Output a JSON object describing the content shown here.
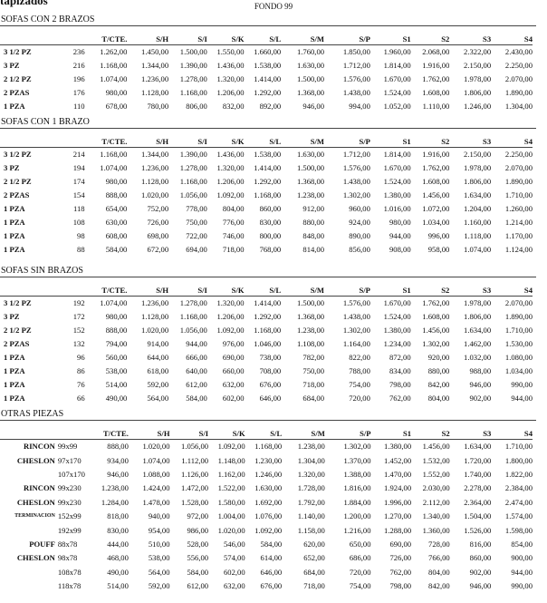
{
  "header": {
    "brand": "tapizados",
    "title": "FONDO 99"
  },
  "sections": [
    {
      "title": "SOFAS CON 2 BRAZOS",
      "columns": [
        "T/CTE.",
        "S/H",
        "S/I",
        "S/K",
        "S/L",
        "S/M",
        "S/P",
        "S1",
        "S2",
        "S3",
        "S4"
      ],
      "rows": [
        {
          "label": "3 1/2 PZ",
          "size": "236",
          "values": [
            "1.262,00",
            "1.450,00",
            "1.500,00",
            "1.550,00",
            "1.660,00",
            "1.760,00",
            "1.850,00",
            "1.960,00",
            "2.068,00",
            "2.322,00",
            "2.430,00"
          ]
        },
        {
          "label": "3 PZ",
          "size": "216",
          "values": [
            "1.168,00",
            "1.344,00",
            "1.390,00",
            "1.436,00",
            "1.538,00",
            "1.630,00",
            "1.712,00",
            "1.814,00",
            "1.916,00",
            "2.150,00",
            "2.250,00"
          ]
        },
        {
          "label": "2 1/2 PZ",
          "size": "196",
          "values": [
            "1.074,00",
            "1.236,00",
            "1.278,00",
            "1.320,00",
            "1.414,00",
            "1.500,00",
            "1.576,00",
            "1.670,00",
            "1.762,00",
            "1.978,00",
            "2.070,00"
          ]
        },
        {
          "label": "2 PZAS",
          "size": "176",
          "values": [
            "980,00",
            "1.128,00",
            "1.168,00",
            "1.206,00",
            "1.292,00",
            "1.368,00",
            "1.438,00",
            "1.524,00",
            "1.608,00",
            "1.806,00",
            "1.890,00"
          ]
        },
        {
          "label": "1 PZA",
          "size": "110",
          "values": [
            "678,00",
            "780,00",
            "806,00",
            "832,00",
            "892,00",
            "946,00",
            "994,00",
            "1.052,00",
            "1.110,00",
            "1.246,00",
            "1.304,00"
          ]
        }
      ]
    },
    {
      "title": "SOFAS CON 1 BRAZO",
      "columns": [
        "T/CTE.",
        "S/H",
        "S/I",
        "S/K",
        "S/L",
        "S/M",
        "S/P",
        "S1",
        "S2",
        "S3",
        "S4"
      ],
      "rows": [
        {
          "label": "3 1/2 PZ",
          "size": "214",
          "values": [
            "1.168,00",
            "1.344,00",
            "1.390,00",
            "1.436,00",
            "1.538,00",
            "1.630,00",
            "1.712,00",
            "1.814,00",
            "1.916,00",
            "2.150,00",
            "2.250,00"
          ]
        },
        {
          "label": "3 PZ",
          "size": "194",
          "values": [
            "1.074,00",
            "1.236,00",
            "1.278,00",
            "1.320,00",
            "1.414,00",
            "1.500,00",
            "1.576,00",
            "1.670,00",
            "1.762,00",
            "1.978,00",
            "2.070,00"
          ]
        },
        {
          "label": "2 1/2 PZ",
          "size": "174",
          "values": [
            "980,00",
            "1.128,00",
            "1.168,00",
            "1.206,00",
            "1.292,00",
            "1.368,00",
            "1.438,00",
            "1.524,00",
            "1.608,00",
            "1.806,00",
            "1.890,00"
          ]
        },
        {
          "label": "2 PZAS",
          "size": "154",
          "values": [
            "888,00",
            "1.020,00",
            "1.056,00",
            "1.092,00",
            "1.168,00",
            "1.238,00",
            "1.302,00",
            "1.380,00",
            "1.456,00",
            "1.634,00",
            "1.710,00"
          ]
        },
        {
          "label": "1 PZA",
          "size": "118",
          "values": [
            "654,00",
            "752,00",
            "778,00",
            "804,00",
            "860,00",
            "912,00",
            "960,00",
            "1.016,00",
            "1.072,00",
            "1.204,00",
            "1.260,00"
          ]
        },
        {
          "label": "1 PZA",
          "size": "108",
          "values": [
            "630,00",
            "726,00",
            "750,00",
            "776,00",
            "830,00",
            "880,00",
            "924,00",
            "980,00",
            "1.034,00",
            "1.160,00",
            "1.214,00"
          ]
        },
        {
          "label": "1 PZA",
          "size": "98",
          "values": [
            "608,00",
            "698,00",
            "722,00",
            "746,00",
            "800,00",
            "848,00",
            "890,00",
            "944,00",
            "996,00",
            "1.118,00",
            "1.170,00"
          ]
        },
        {
          "label": "1 PZA",
          "size": "88",
          "values": [
            "584,00",
            "672,00",
            "694,00",
            "718,00",
            "768,00",
            "814,00",
            "856,00",
            "908,00",
            "958,00",
            "1.074,00",
            "1.124,00"
          ]
        }
      ]
    },
    {
      "title": "SOFAS SIN BRAZOS",
      "columns": [
        "T/CTE.",
        "S/H",
        "S/I",
        "S/K",
        "S/L",
        "S/M",
        "S/P",
        "S1",
        "S2",
        "S3",
        "S4"
      ],
      "rows": [
        {
          "label": "3 1/2 PZ",
          "size": "192",
          "values": [
            "1.074,00",
            "1.236,00",
            "1.278,00",
            "1.320,00",
            "1.414,00",
            "1.500,00",
            "1.576,00",
            "1.670,00",
            "1.762,00",
            "1.978,00",
            "2.070,00"
          ]
        },
        {
          "label": "3 PZ",
          "size": "172",
          "values": [
            "980,00",
            "1.128,00",
            "1.168,00",
            "1.206,00",
            "1.292,00",
            "1.368,00",
            "1.438,00",
            "1.524,00",
            "1.608,00",
            "1.806,00",
            "1.890,00"
          ]
        },
        {
          "label": "2 1/2 PZ",
          "size": "152",
          "values": [
            "888,00",
            "1.020,00",
            "1.056,00",
            "1.092,00",
            "1.168,00",
            "1.238,00",
            "1.302,00",
            "1.380,00",
            "1.456,00",
            "1.634,00",
            "1.710,00"
          ]
        },
        {
          "label": "2 PZAS",
          "size": "132",
          "values": [
            "794,00",
            "914,00",
            "944,00",
            "976,00",
            "1.046,00",
            "1.108,00",
            "1.164,00",
            "1.234,00",
            "1.302,00",
            "1.462,00",
            "1.530,00"
          ]
        },
        {
          "label": "1 PZA",
          "size": "96",
          "values": [
            "560,00",
            "644,00",
            "666,00",
            "690,00",
            "738,00",
            "782,00",
            "822,00",
            "872,00",
            "920,00",
            "1.032,00",
            "1.080,00"
          ]
        },
        {
          "label": "1 PZA",
          "size": "86",
          "values": [
            "538,00",
            "618,00",
            "640,00",
            "660,00",
            "708,00",
            "750,00",
            "788,00",
            "834,00",
            "880,00",
            "988,00",
            "1.034,00"
          ]
        },
        {
          "label": "1 PZA",
          "size": "76",
          "values": [
            "514,00",
            "592,00",
            "612,00",
            "632,00",
            "676,00",
            "718,00",
            "754,00",
            "798,00",
            "842,00",
            "946,00",
            "990,00"
          ]
        },
        {
          "label": "1 PZA",
          "size": "66",
          "values": [
            "490,00",
            "564,00",
            "584,00",
            "602,00",
            "646,00",
            "684,00",
            "720,00",
            "762,00",
            "804,00",
            "902,00",
            "944,00"
          ]
        }
      ]
    },
    {
      "title": "OTRAS PIEZAS",
      "columns": [
        "T/CTE.",
        "S/H",
        "S/I",
        "S/K",
        "S/L",
        "S/M",
        "S/P",
        "S1",
        "S2",
        "S3",
        "S4"
      ],
      "rows": [
        {
          "label": "RINCON",
          "size": "99x99",
          "values": [
            "888,00",
            "1.020,00",
            "1.056,00",
            "1.092,00",
            "1.168,00",
            "1.238,00",
            "1.302,00",
            "1.380,00",
            "1.456,00",
            "1.634,00",
            "1.710,00"
          ]
        },
        {
          "label": "CHESLON",
          "size": "97x170",
          "values": [
            "934,00",
            "1.074,00",
            "1.112,00",
            "1.148,00",
            "1.230,00",
            "1.304,00",
            "1.370,00",
            "1.452,00",
            "1.532,00",
            "1.720,00",
            "1.800,00"
          ]
        },
        {
          "size": "107x170",
          "values": [
            "946,00",
            "1.088,00",
            "1.126,00",
            "1.162,00",
            "1.246,00",
            "1.320,00",
            "1.388,00",
            "1.470,00",
            "1.552,00",
            "1.740,00",
            "1.822,00"
          ]
        },
        {
          "label": "RINCON",
          "size": "99x230",
          "values": [
            "1.238,00",
            "1.424,00",
            "1.472,00",
            "1.522,00",
            "1.630,00",
            "1.728,00",
            "1.816,00",
            "1.924,00",
            "2.030,00",
            "2.278,00",
            "2.384,00"
          ]
        },
        {
          "label": "CHESLON",
          "size": "99x230",
          "values": [
            "1.284,00",
            "1.478,00",
            "1.528,00",
            "1.580,00",
            "1.692,00",
            "1.792,00",
            "1.884,00",
            "1.996,00",
            "2.112,00",
            "2.364,00",
            "2.474,00"
          ]
        },
        {
          "label": "TERMINACION",
          "size": "152x99",
          "values": [
            "818,00",
            "940,00",
            "972,00",
            "1.004,00",
            "1.076,00",
            "1.140,00",
            "1.200,00",
            "1.270,00",
            "1.340,00",
            "1.504,00",
            "1.574,00"
          ]
        },
        {
          "size": "192x99",
          "values": [
            "830,00",
            "954,00",
            "986,00",
            "1.020,00",
            "1.092,00",
            "1.158,00",
            "1.216,00",
            "1.288,00",
            "1.360,00",
            "1.526,00",
            "1.598,00"
          ]
        },
        {
          "label": "POUFF",
          "size": "88x78",
          "values": [
            "444,00",
            "510,00",
            "528,00",
            "546,00",
            "584,00",
            "620,00",
            "650,00",
            "690,00",
            "728,00",
            "816,00",
            "854,00"
          ]
        },
        {
          "label": "CHESLON",
          "size": "98x78",
          "values": [
            "468,00",
            "538,00",
            "556,00",
            "574,00",
            "614,00",
            "652,00",
            "686,00",
            "726,00",
            "766,00",
            "860,00",
            "900,00"
          ]
        },
        {
          "size": "108x78",
          "values": [
            "490,00",
            "564,00",
            "584,00",
            "602,00",
            "646,00",
            "684,00",
            "720,00",
            "762,00",
            "804,00",
            "902,00",
            "944,00"
          ]
        },
        {
          "size": "118x78",
          "values": [
            "514,00",
            "592,00",
            "612,00",
            "632,00",
            "676,00",
            "718,00",
            "754,00",
            "798,00",
            "842,00",
            "946,00",
            "990,00"
          ]
        }
      ]
    }
  ]
}
